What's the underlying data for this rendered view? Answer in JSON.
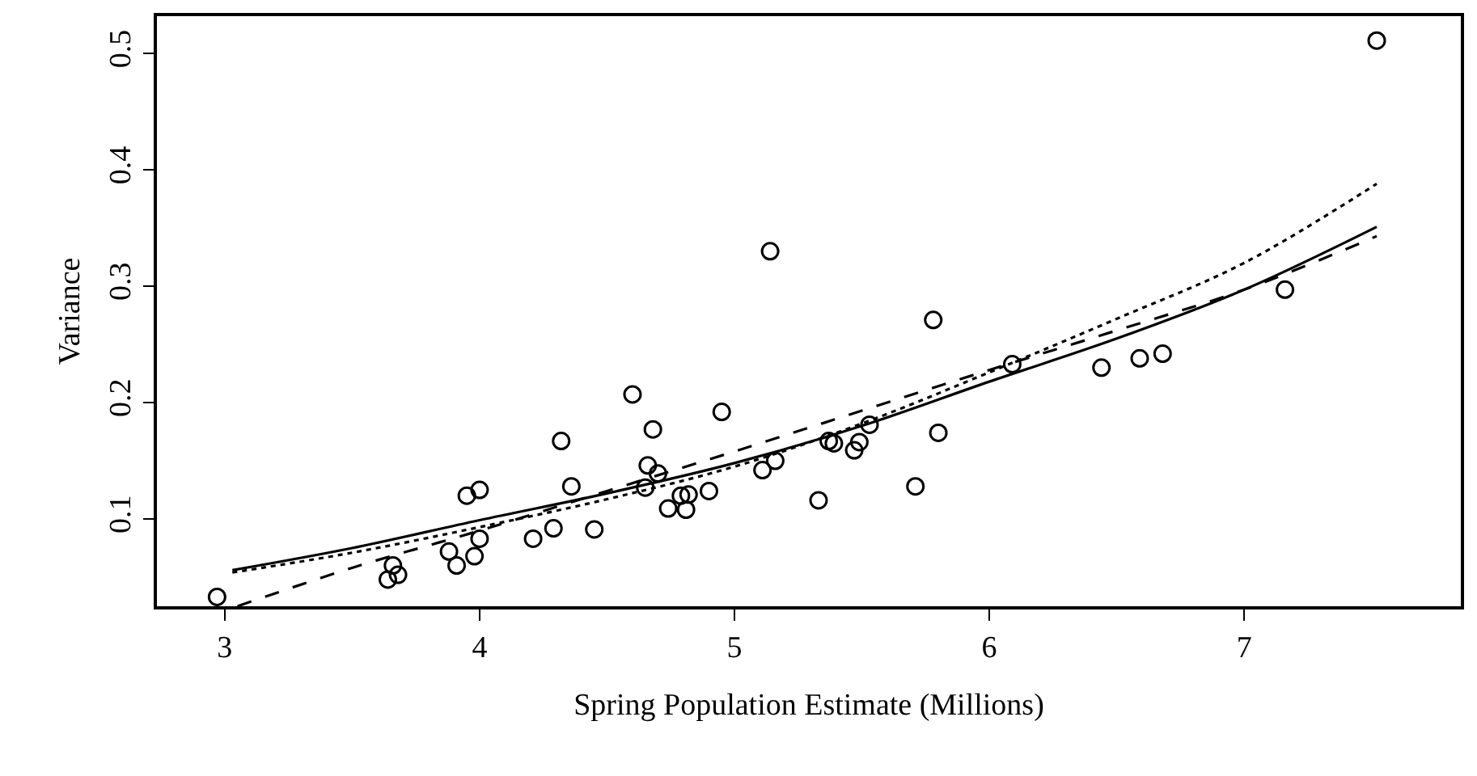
{
  "chart_data": {
    "type": "scatter",
    "xlabel": "Spring Population Estimate (Millions)",
    "ylabel": "Variance",
    "xlim": [
      2.734,
      7.85
    ],
    "ylim": [
      0.025,
      0.532
    ],
    "xticks": [
      3,
      4,
      5,
      6,
      7
    ],
    "yticks": [
      0.1,
      0.2,
      0.3,
      0.4,
      0.5
    ],
    "grid": false,
    "legend": false,
    "series": [
      {
        "marker": "circle",
        "color": "#000000",
        "x": [
          2.97,
          3.64,
          3.66,
          3.68,
          3.88,
          3.91,
          3.95,
          3.98,
          4.0,
          4.0,
          4.21,
          4.29,
          4.32,
          4.36,
          4.45,
          4.6,
          4.65,
          4.66,
          4.68,
          4.7,
          4.74,
          4.79,
          4.81,
          4.82,
          4.9,
          4.95,
          5.11,
          5.14,
          5.16,
          5.33,
          5.37,
          5.39,
          5.47,
          5.49,
          5.53,
          5.71,
          5.78,
          5.8,
          6.09,
          6.44,
          6.59,
          6.68,
          7.16,
          7.52
        ],
        "values": [
          0.033,
          0.048,
          0.06,
          0.052,
          0.072,
          0.06,
          0.12,
          0.068,
          0.125,
          0.083,
          0.083,
          0.092,
          0.167,
          0.128,
          0.091,
          0.207,
          0.127,
          0.146,
          0.177,
          0.139,
          0.109,
          0.12,
          0.108,
          0.121,
          0.124,
          0.192,
          0.142,
          0.33,
          0.15,
          0.116,
          0.167,
          0.165,
          0.159,
          0.166,
          0.181,
          0.128,
          0.271,
          0.174,
          0.233,
          0.23,
          0.238,
          0.242,
          0.297,
          0.511
        ]
      },
      {
        "type": "line",
        "line_style": "solid",
        "color": "#000000",
        "x": [
          3.03,
          3.5,
          4,
          4.5,
          5,
          5.5,
          6,
          6.5,
          7,
          7.52
        ],
        "values": [
          0.056,
          0.075,
          0.099,
          0.122,
          0.148,
          0.18,
          0.218,
          0.255,
          0.297,
          0.351
        ]
      },
      {
        "type": "line",
        "line_style": "dotted",
        "color": "#000000",
        "x": [
          3.03,
          3.5,
          4,
          4.5,
          5,
          5.5,
          6,
          6.5,
          7,
          7.52
        ],
        "values": [
          0.054,
          0.071,
          0.093,
          0.117,
          0.145,
          0.182,
          0.226,
          0.272,
          0.32,
          0.388
        ]
      },
      {
        "type": "line",
        "line_style": "dashed",
        "color": "#000000",
        "x": [
          3.05,
          3.5,
          4,
          4.5,
          5,
          5.5,
          6,
          6.5,
          7,
          7.52
        ],
        "values": [
          0.025,
          0.058,
          0.09,
          0.124,
          0.158,
          0.193,
          0.228,
          0.262,
          0.297,
          0.343
        ]
      }
    ]
  }
}
